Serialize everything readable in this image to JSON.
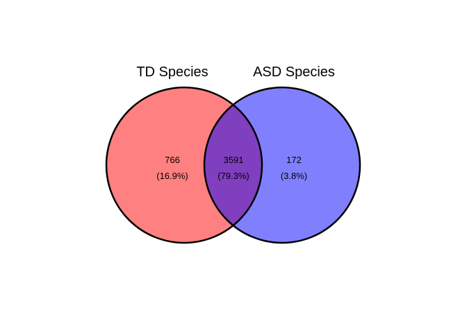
{
  "venn": {
    "sets": [
      {
        "name": "TD Species",
        "color": "#ff8080"
      },
      {
        "name": "ASD Species",
        "color": "#8080ff"
      }
    ],
    "overlap_color": "#7f3fbf",
    "regions": {
      "td_only": {
        "count": "766",
        "percent": "(16.9%)"
      },
      "intersection": {
        "count": "3591",
        "percent": "(79.3%)"
      },
      "asd_only": {
        "count": "172",
        "percent": "(3.8%)"
      }
    }
  }
}
